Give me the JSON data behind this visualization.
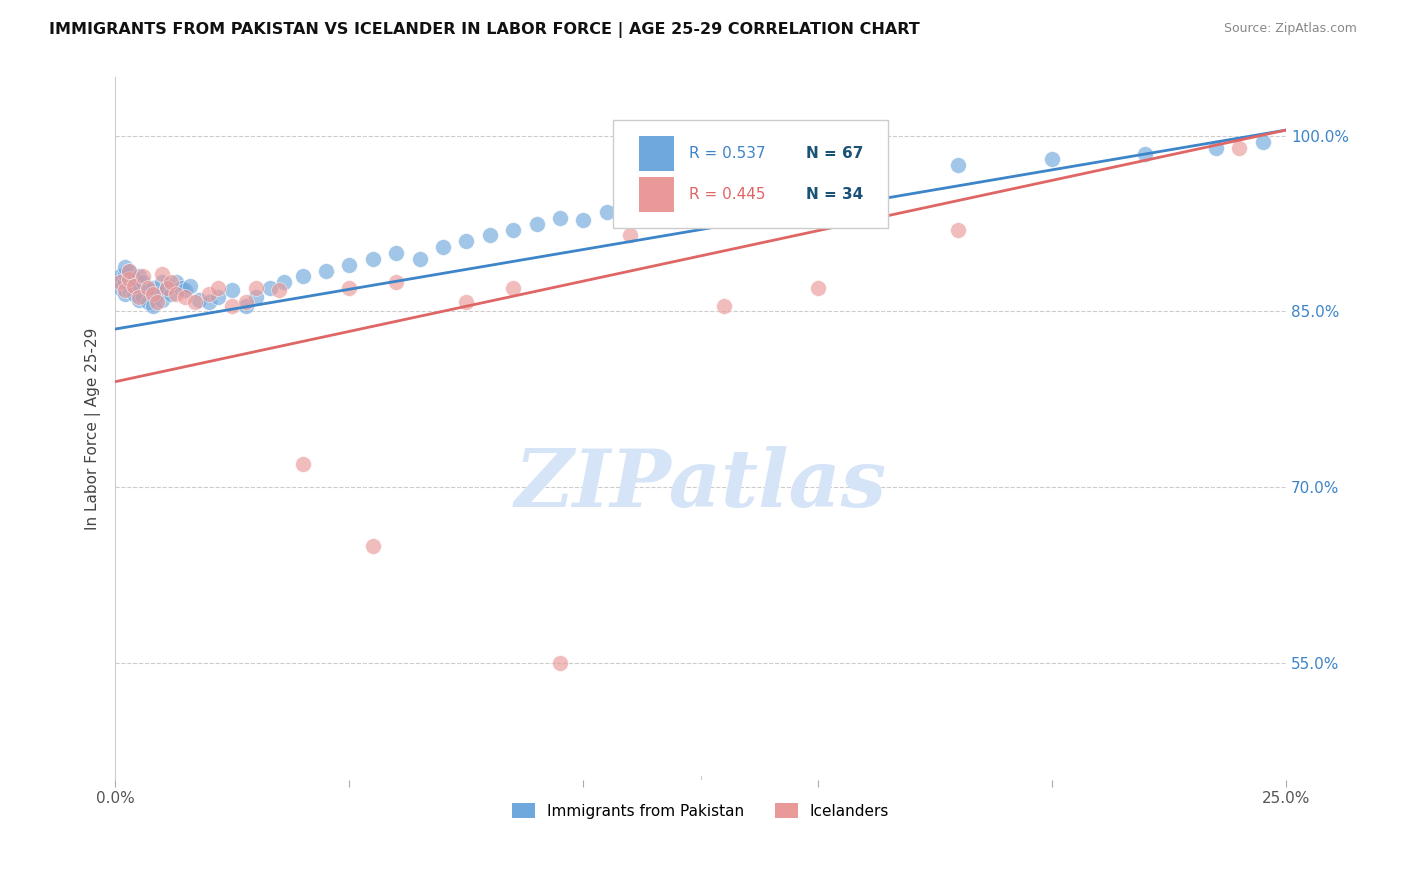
{
  "title": "IMMIGRANTS FROM PAKISTAN VS ICELANDER IN LABOR FORCE | AGE 25-29 CORRELATION CHART",
  "source": "Source: ZipAtlas.com",
  "ylabel": "In Labor Force | Age 25-29",
  "xlim": [
    0.0,
    0.25
  ],
  "ylim": [
    0.45,
    1.05
  ],
  "xticks": [
    0.0,
    0.05,
    0.1,
    0.15,
    0.2,
    0.25
  ],
  "xticklabels": [
    "0.0%",
    "",
    "",
    "",
    "",
    "25.0%"
  ],
  "yticks": [
    0.55,
    0.7,
    0.85,
    1.0
  ],
  "yticklabels": [
    "55.0%",
    "70.0%",
    "85.0%",
    "100.0%"
  ],
  "pakistan_color": "#6fa8dc",
  "iceland_color": "#ea9999",
  "pakistan_R": 0.537,
  "pakistan_N": 67,
  "iceland_R": 0.445,
  "iceland_N": 34,
  "pakistan_line_color": "#3d85c8",
  "iceland_line_color": "#e06666",
  "legend_R_color_pak": "#3d85c8",
  "legend_R_color_ice": "#e06666",
  "legend_N_color": "#1a5276",
  "watermark_color": "#d6e4f7",
  "background_color": "#ffffff",
  "grid_color": "#cccccc",
  "pakistan_x": [
    0.001,
    0.001,
    0.001,
    0.002,
    0.002,
    0.002,
    0.002,
    0.003,
    0.003,
    0.003,
    0.003,
    0.004,
    0.004,
    0.004,
    0.005,
    0.005,
    0.005,
    0.006,
    0.006,
    0.007,
    0.007,
    0.008,
    0.008,
    0.009,
    0.01,
    0.01,
    0.011,
    0.012,
    0.013,
    0.014,
    0.015,
    0.016,
    0.018,
    0.02,
    0.022,
    0.025,
    0.028,
    0.03,
    0.033,
    0.036,
    0.04,
    0.045,
    0.05,
    0.055,
    0.06,
    0.065,
    0.07,
    0.075,
    0.08,
    0.085,
    0.09,
    0.095,
    0.1,
    0.105,
    0.11,
    0.115,
    0.12,
    0.125,
    0.13,
    0.14,
    0.15,
    0.16,
    0.18,
    0.2,
    0.22,
    0.235,
    0.245
  ],
  "pakistan_y": [
    0.875,
    0.88,
    0.87,
    0.865,
    0.875,
    0.882,
    0.888,
    0.868,
    0.878,
    0.872,
    0.885,
    0.87,
    0.878,
    0.865,
    0.86,
    0.872,
    0.88,
    0.862,
    0.875,
    0.858,
    0.868,
    0.855,
    0.87,
    0.865,
    0.86,
    0.875,
    0.87,
    0.865,
    0.875,
    0.87,
    0.868,
    0.872,
    0.86,
    0.858,
    0.862,
    0.868,
    0.855,
    0.862,
    0.87,
    0.875,
    0.88,
    0.885,
    0.89,
    0.895,
    0.9,
    0.895,
    0.905,
    0.91,
    0.915,
    0.92,
    0.925,
    0.93,
    0.928,
    0.935,
    0.94,
    0.945,
    0.95,
    0.952,
    0.955,
    0.962,
    0.968,
    0.97,
    0.975,
    0.98,
    0.985,
    0.99,
    0.995
  ],
  "iceland_x": [
    0.001,
    0.002,
    0.003,
    0.003,
    0.004,
    0.005,
    0.006,
    0.007,
    0.008,
    0.009,
    0.01,
    0.011,
    0.012,
    0.013,
    0.015,
    0.017,
    0.02,
    0.022,
    0.025,
    0.028,
    0.03,
    0.035,
    0.04,
    0.05,
    0.055,
    0.06,
    0.075,
    0.085,
    0.095,
    0.11,
    0.13,
    0.15,
    0.18,
    0.24
  ],
  "iceland_y": [
    0.875,
    0.868,
    0.878,
    0.885,
    0.872,
    0.862,
    0.88,
    0.87,
    0.865,
    0.858,
    0.882,
    0.87,
    0.875,
    0.865,
    0.862,
    0.858,
    0.865,
    0.87,
    0.855,
    0.858,
    0.87,
    0.868,
    0.72,
    0.87,
    0.65,
    0.875,
    0.858,
    0.87,
    0.55,
    0.915,
    0.855,
    0.87,
    0.92,
    0.99
  ],
  "pak_line_x0": 0.0,
  "pak_line_y0": 0.835,
  "pak_line_x1": 0.25,
  "pak_line_y1": 1.005,
  "ice_line_x0": 0.0,
  "ice_line_y0": 0.79,
  "ice_line_x1": 0.25,
  "ice_line_y1": 1.005
}
